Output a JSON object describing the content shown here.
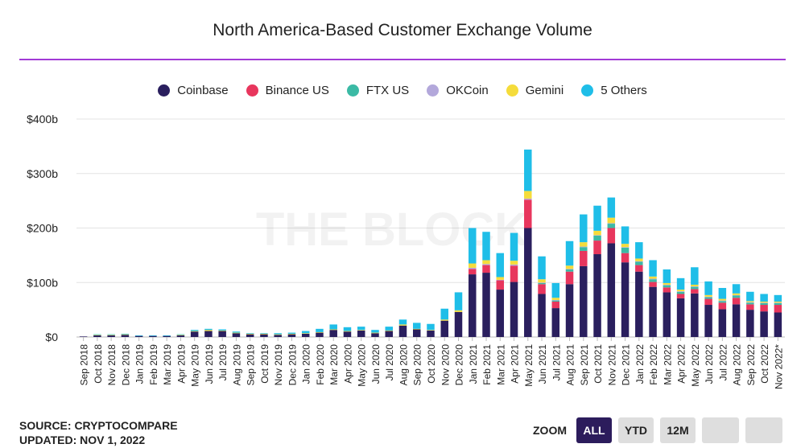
{
  "title": "North America-Based Customer Exchange Volume",
  "watermark": "THE BLOCK",
  "footer": {
    "source": "SOURCE: CRYPTOCOMPARE",
    "updated": "UPDATED: NOV 1, 2022"
  },
  "zoom": {
    "label": "ZOOM",
    "buttons": [
      "ALL",
      "YTD",
      "12M",
      "",
      ""
    ],
    "active": "ALL"
  },
  "chart_data": {
    "type": "bar",
    "stacked": true,
    "legend_position": "top-center",
    "grid": true,
    "ylim": [
      0,
      400
    ],
    "yticks": [
      0,
      100,
      200,
      300,
      400
    ],
    "ytick_labels": [
      "$0",
      "$100b",
      "$200b",
      "$300b",
      "$400b"
    ],
    "categories": [
      "Sep 2018",
      "Oct 2018",
      "Nov 2018",
      "Dec 2018",
      "Jan 2019",
      "Feb 2019",
      "Mar 2019",
      "Apr 2019",
      "May 2019",
      "Jun 2019",
      "Jul 2019",
      "Aug 2019",
      "Sep 2019",
      "Oct 2019",
      "Nov 2019",
      "Dec 2019",
      "Jan 2020",
      "Feb 2020",
      "Mar 2020",
      "Apr 2020",
      "May 2020",
      "Jun 2020",
      "Jul 2020",
      "Aug 2020",
      "Sep 2020",
      "Oct 2020",
      "Nov 2020",
      "Dec 2020",
      "Jan 2021",
      "Feb 2021",
      "Mar 2021",
      "Apr 2021",
      "May 2021",
      "Jun 2021",
      "Jul 2021",
      "Aug 2021",
      "Sep 2021",
      "Oct 2021",
      "Nov 2021",
      "Dec 2021",
      "Jan 2022",
      "Feb 2022",
      "Mar 2022",
      "Apr 2022",
      "May 2022",
      "Jun 2022",
      "Jul 2022",
      "Aug 2022",
      "Sep 2022",
      "Oct 2022",
      "Nov 2022*"
    ],
    "series": [
      {
        "name": "Coinbase",
        "color": "#2a1f5e",
        "values": [
          1,
          3,
          3,
          4,
          2,
          2,
          2,
          3,
          10,
          11,
          11,
          7,
          5,
          5,
          4,
          5,
          6,
          8,
          13,
          10,
          12,
          7,
          11,
          21,
          14,
          12,
          30,
          46,
          115,
          118,
          87,
          101,
          200,
          79,
          53,
          97,
          130,
          152,
          172,
          137,
          120,
          92,
          82,
          71,
          80,
          59,
          51,
          60,
          50,
          47,
          45
        ]
      },
      {
        "name": "Binance US",
        "color": "#e8365d",
        "values": [
          0,
          0,
          0,
          0,
          0,
          0,
          0,
          0,
          0,
          0,
          0,
          0,
          0,
          0,
          0,
          0,
          0,
          0,
          0,
          0,
          0,
          0,
          0,
          0,
          0,
          0,
          0,
          0,
          10,
          14,
          17,
          30,
          52,
          18,
          12,
          23,
          28,
          25,
          28,
          17,
          12,
          9,
          9,
          8,
          8,
          11,
          12,
          12,
          10,
          12,
          14
        ]
      },
      {
        "name": "FTX US",
        "color": "#3bbaa5",
        "values": [
          0,
          0,
          0,
          0,
          0,
          0,
          0,
          0,
          0,
          0,
          0,
          0,
          0,
          0,
          0,
          0,
          0,
          0,
          0,
          0,
          0,
          0,
          0,
          0,
          0,
          0,
          0,
          0,
          0,
          0,
          0,
          0,
          0,
          2,
          2,
          4,
          7,
          9,
          8,
          10,
          6,
          5,
          4,
          4,
          4,
          3,
          3,
          4,
          3,
          3,
          3
        ]
      },
      {
        "name": "OKCoin",
        "color": "#b3a8db",
        "values": [
          0,
          0,
          0,
          0,
          0,
          0,
          0,
          0,
          0,
          0,
          0,
          0,
          0,
          0,
          0,
          0,
          0,
          0,
          0,
          0,
          0,
          0,
          0,
          0,
          0,
          0,
          0,
          0,
          2,
          2,
          1,
          2,
          2,
          1,
          1,
          1,
          1,
          1,
          1,
          1,
          1,
          1,
          1,
          1,
          1,
          1,
          1,
          1,
          1,
          1,
          1
        ]
      },
      {
        "name": "Gemini",
        "color": "#f5dc3b",
        "values": [
          0,
          1,
          1,
          1,
          0,
          0,
          0,
          1,
          1,
          2,
          1,
          1,
          1,
          1,
          1,
          1,
          1,
          1,
          1,
          1,
          1,
          1,
          1,
          2,
          1,
          1,
          2,
          3,
          8,
          7,
          5,
          7,
          14,
          6,
          4,
          6,
          8,
          8,
          10,
          6,
          5,
          4,
          3,
          3,
          3,
          3,
          3,
          3,
          2,
          2,
          2
        ]
      },
      {
        "name": "5 Others",
        "color": "#1fbee8",
        "values": [
          0,
          1,
          1,
          1,
          1,
          1,
          1,
          1,
          2,
          2,
          2,
          2,
          1,
          1,
          2,
          2,
          4,
          6,
          9,
          7,
          6,
          5,
          7,
          9,
          11,
          11,
          20,
          33,
          65,
          52,
          44,
          51,
          76,
          42,
          27,
          45,
          51,
          46,
          37,
          32,
          30,
          30,
          25,
          21,
          32,
          25,
          20,
          17,
          17,
          14,
          12
        ]
      }
    ]
  }
}
